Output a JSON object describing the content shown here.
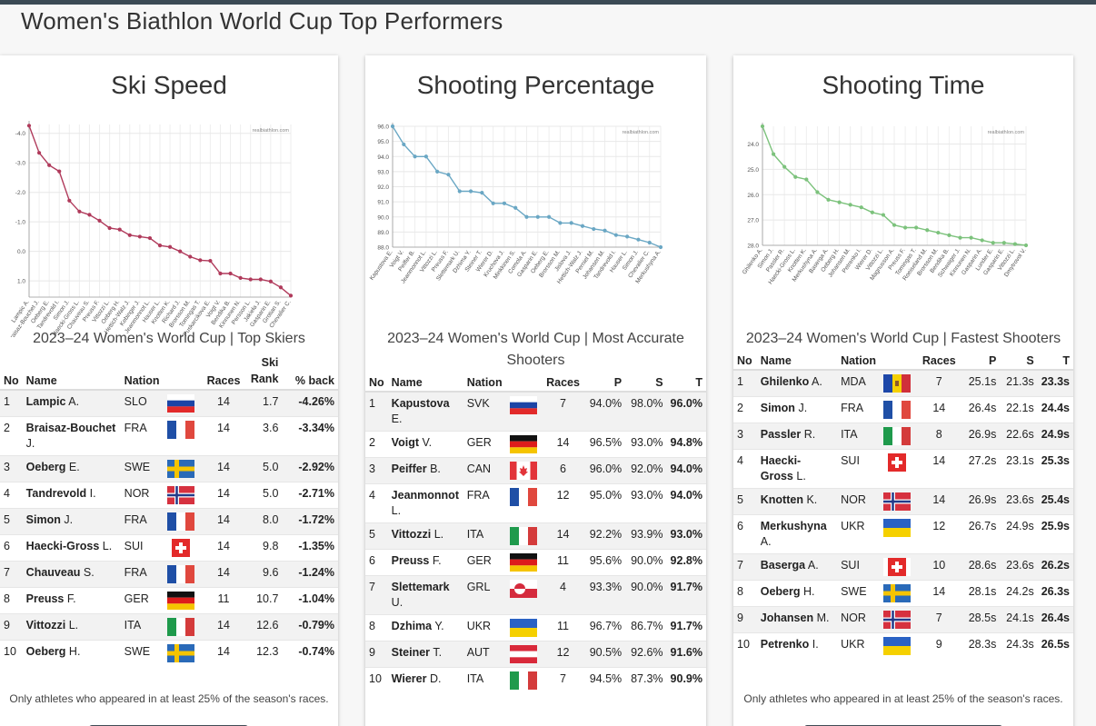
{
  "page": {
    "title": "Women's Biathlon World Cup Top Performers"
  },
  "cards": [
    {
      "title": "Ski Speed",
      "subtitle": "2023–24 Women's World Cup | Top Skiers",
      "note": "Only athletes who appeared in at least 25% of the season's races.",
      "columns": [
        "No",
        "Name",
        "Nation",
        "Races",
        "Ski Rank",
        "% back"
      ],
      "rows": [
        {
          "no": "1",
          "surname": "Lampic",
          "initial": "A.",
          "nation": "SLO",
          "races": "14",
          "v1": "1.7",
          "v2": "-4.26%"
        },
        {
          "no": "2",
          "surname": "Braisaz-Bouchet",
          "initial": "J.",
          "nation": "FRA",
          "races": "14",
          "v1": "3.6",
          "v2": "-3.34%"
        },
        {
          "no": "3",
          "surname": "Oeberg",
          "initial": "E.",
          "nation": "SWE",
          "races": "14",
          "v1": "5.0",
          "v2": "-2.92%"
        },
        {
          "no": "4",
          "surname": "Tandrevold",
          "initial": "I.",
          "nation": "NOR",
          "races": "14",
          "v1": "5.0",
          "v2": "-2.71%"
        },
        {
          "no": "5",
          "surname": "Simon",
          "initial": "J.",
          "nation": "FRA",
          "races": "14",
          "v1": "8.0",
          "v2": "-1.72%"
        },
        {
          "no": "6",
          "surname": "Haecki-Gross",
          "initial": "L.",
          "nation": "SUI",
          "races": "14",
          "v1": "9.8",
          "v2": "-1.35%"
        },
        {
          "no": "7",
          "surname": "Chauveau",
          "initial": "S.",
          "nation": "FRA",
          "races": "14",
          "v1": "9.6",
          "v2": "-1.24%"
        },
        {
          "no": "8",
          "surname": "Preuss",
          "initial": "F.",
          "nation": "GER",
          "races": "11",
          "v1": "10.7",
          "v2": "-1.04%"
        },
        {
          "no": "9",
          "surname": "Vittozzi",
          "initial": "L.",
          "nation": "ITA",
          "races": "14",
          "v1": "12.6",
          "v2": "-0.79%"
        },
        {
          "no": "10",
          "surname": "Oeberg",
          "initial": "H.",
          "nation": "SWE",
          "races": "14",
          "v1": "12.3",
          "v2": "-0.74%"
        }
      ]
    },
    {
      "title": "Shooting Percentage",
      "subtitle": "2023–24 Women's World Cup | Most Accurate Shooters",
      "note": "",
      "columns": [
        "No",
        "Name",
        "Nation",
        "Races",
        "P",
        "S",
        "T"
      ],
      "rows": [
        {
          "no": "1",
          "surname": "Kapustova",
          "initial": "E.",
          "nation": "SVK",
          "races": "7",
          "v1": "94.0%",
          "v2": "98.0%",
          "v3": "96.0%"
        },
        {
          "no": "2",
          "surname": "Voigt",
          "initial": "V.",
          "nation": "GER",
          "races": "14",
          "v1": "96.5%",
          "v2": "93.0%",
          "v3": "94.8%"
        },
        {
          "no": "3",
          "surname": "Peiffer",
          "initial": "B.",
          "nation": "CAN",
          "races": "6",
          "v1": "96.0%",
          "v2": "92.0%",
          "v3": "94.0%"
        },
        {
          "no": "4",
          "surname": "Jeanmonnot",
          "initial": "L.",
          "nation": "FRA",
          "races": "12",
          "v1": "95.0%",
          "v2": "93.0%",
          "v3": "94.0%"
        },
        {
          "no": "5",
          "surname": "Vittozzi",
          "initial": "L.",
          "nation": "ITA",
          "races": "14",
          "v1": "92.2%",
          "v2": "93.9%",
          "v3": "93.0%"
        },
        {
          "no": "6",
          "surname": "Preuss",
          "initial": "F.",
          "nation": "GER",
          "races": "11",
          "v1": "95.6%",
          "v2": "90.0%",
          "v3": "92.8%"
        },
        {
          "no": "7",
          "surname": "Slettemark",
          "initial": "U.",
          "nation": "GRL",
          "races": "4",
          "v1": "93.3%",
          "v2": "90.0%",
          "v3": "91.7%"
        },
        {
          "no": "8",
          "surname": "Dzhima",
          "initial": "Y.",
          "nation": "UKR",
          "races": "11",
          "v1": "96.7%",
          "v2": "86.7%",
          "v3": "91.7%"
        },
        {
          "no": "9",
          "surname": "Steiner",
          "initial": "T.",
          "nation": "AUT",
          "races": "12",
          "v1": "90.5%",
          "v2": "92.6%",
          "v3": "91.6%"
        },
        {
          "no": "10",
          "surname": "Wierer",
          "initial": "D.",
          "nation": "ITA",
          "races": "7",
          "v1": "94.5%",
          "v2": "87.3%",
          "v3": "90.9%"
        }
      ]
    },
    {
      "title": "Shooting Time",
      "subtitle": "2023–24 Women's World Cup | Fastest Shooters",
      "note": "Only athletes who appeared in at least 25% of the season's races.",
      "columns": [
        "No",
        "Name",
        "Nation",
        "Races",
        "P",
        "S",
        "T"
      ],
      "rows": [
        {
          "no": "1",
          "surname": "Ghilenko",
          "initial": "A.",
          "nation": "MDA",
          "races": "7",
          "v1": "25.1s",
          "v2": "21.3s",
          "v3": "23.3s"
        },
        {
          "no": "2",
          "surname": "Simon",
          "initial": "J.",
          "nation": "FRA",
          "races": "14",
          "v1": "26.4s",
          "v2": "22.1s",
          "v3": "24.4s"
        },
        {
          "no": "3",
          "surname": "Passler",
          "initial": "R.",
          "nation": "ITA",
          "races": "8",
          "v1": "26.9s",
          "v2": "22.6s",
          "v3": "24.9s"
        },
        {
          "no": "4",
          "surname": "Haecki-Gross",
          "initial": "L.",
          "nation": "SUI",
          "races": "14",
          "v1": "27.2s",
          "v2": "23.1s",
          "v3": "25.3s"
        },
        {
          "no": "5",
          "surname": "Knotten",
          "initial": "K.",
          "nation": "NOR",
          "races": "14",
          "v1": "26.9s",
          "v2": "23.6s",
          "v3": "25.4s"
        },
        {
          "no": "6",
          "surname": "Merkushyna",
          "initial": "A.",
          "nation": "UKR",
          "races": "12",
          "v1": "26.7s",
          "v2": "24.9s",
          "v3": "25.9s"
        },
        {
          "no": "7",
          "surname": "Baserga",
          "initial": "A.",
          "nation": "SUI",
          "races": "10",
          "v1": "28.6s",
          "v2": "23.6s",
          "v3": "26.2s"
        },
        {
          "no": "8",
          "surname": "Oeberg",
          "initial": "H.",
          "nation": "SWE",
          "races": "14",
          "v1": "28.1s",
          "v2": "24.2s",
          "v3": "26.3s"
        },
        {
          "no": "9",
          "surname": "Johansen",
          "initial": "M.",
          "nation": "NOR",
          "races": "7",
          "v1": "28.5s",
          "v2": "24.1s",
          "v3": "26.4s"
        },
        {
          "no": "10",
          "surname": "Petrenko",
          "initial": "I.",
          "nation": "UKR",
          "races": "9",
          "v1": "28.3s",
          "v2": "24.3s",
          "v3": "26.5s"
        }
      ]
    }
  ],
  "chart_data": [
    {
      "type": "line",
      "watermark": "realbiathlon.com",
      "color": "#b03a5b",
      "ylim": [
        1.5,
        -4.3
      ],
      "yticks": [
        "-4.0",
        "-3.0",
        "-2.0",
        "-1.0",
        "0.0",
        "1.0"
      ],
      "x": [
        "Lampic A.",
        "Braisaz-Bouchet J.",
        "Oeberg E.",
        "Tandrevold I.",
        "Simon J.",
        "Haecki-Gross L.",
        "Chauveau S.",
        "Preuss F.",
        "Vittozzi L.",
        "Oeberg H.",
        "Hettich-Walz J.",
        "Kebinger J.",
        "Jeanmonnot L.",
        "Hauser L.",
        "Knotten K.",
        "Richard J.",
        "Brorsson M.",
        "Tomingas T.",
        "Kristejn Puskarcikova E.",
        "Voigt V.",
        "Bendika B.",
        "Kinnunen N.",
        "Persson L.",
        "Jakieła J.",
        "Gasparin E.",
        "Grotian S.",
        "Chevalier C."
      ],
      "values": [
        -4.26,
        -3.34,
        -2.92,
        -2.71,
        -1.72,
        -1.35,
        -1.24,
        -1.04,
        -0.79,
        -0.74,
        -0.55,
        -0.5,
        -0.45,
        -0.2,
        -0.15,
        0.0,
        0.18,
        0.3,
        0.32,
        0.75,
        0.75,
        0.9,
        0.95,
        0.95,
        1.02,
        1.22,
        1.5
      ]
    },
    {
      "type": "line",
      "watermark": "realbiathlon.com",
      "color": "#6aa7c4",
      "ylim": [
        88.0,
        96.0
      ],
      "yticks": [
        "96.0",
        "95.0",
        "94.0",
        "93.0",
        "92.0",
        "91.0",
        "90.0",
        "89.0",
        "88.0"
      ],
      "x": [
        "Kapustova E.",
        "Voigt V.",
        "Peiffer B.",
        "Jeanmonnot L.",
        "Vittozzi L.",
        "Preuss F.",
        "Slettemark U.",
        "Dzhima Y.",
        "Steiner T.",
        "Wierer D.",
        "Kruchova J.",
        "Minkkinen S.",
        "Comola A.",
        "Gasparin E.",
        "Oeberg E.",
        "Brorsson M.",
        "Jislova J.",
        "Hettich-Walz J.",
        "Perniel M.",
        "Johansen M.",
        "Tandrevold I.",
        "Hauser L.",
        "Simon J.",
        "Chevalier C.",
        "Merkushyna A."
      ],
      "values": [
        96.0,
        94.8,
        94.0,
        94.0,
        93.0,
        92.8,
        91.7,
        91.7,
        91.6,
        90.9,
        90.9,
        90.6,
        90.0,
        90.0,
        90.0,
        89.6,
        89.6,
        89.4,
        89.2,
        89.1,
        88.8,
        88.7,
        88.5,
        88.3,
        88.0
      ]
    },
    {
      "type": "line",
      "watermark": "realbiathlon.com",
      "color": "#7cc27c",
      "ylim": [
        23.3,
        28.0
      ],
      "yticks": [
        "24.0",
        "25.0",
        "26.0",
        "27.0",
        "28.0"
      ],
      "x": [
        "Ghilenko A.",
        "Simon J.",
        "Passler R.",
        "Haecki-Gross L.",
        "Knotten K.",
        "Merkushyna A.",
        "Baserga A.",
        "Oeberg H.",
        "Johansen M.",
        "Petrenko I.",
        "Wierer D.",
        "Vittozzi L.",
        "Magnusson A.",
        "Preuss F.",
        "Tomingas T.",
        "Roeiseland M.",
        "Brorsson M.",
        "Bendika B.",
        "Schwaiger J.",
        "Kinnunen N.",
        "Gasparin A.",
        "Lunder E.",
        "Gasparin E.",
        "Vittozzi L.",
        "Dmytrovol V."
      ],
      "values": [
        23.3,
        24.4,
        24.9,
        25.3,
        25.4,
        25.9,
        26.2,
        26.3,
        26.4,
        26.5,
        26.7,
        26.8,
        27.2,
        27.3,
        27.3,
        27.4,
        27.5,
        27.6,
        27.7,
        27.7,
        27.8,
        27.9,
        27.9,
        27.95,
        28.0
      ]
    }
  ]
}
